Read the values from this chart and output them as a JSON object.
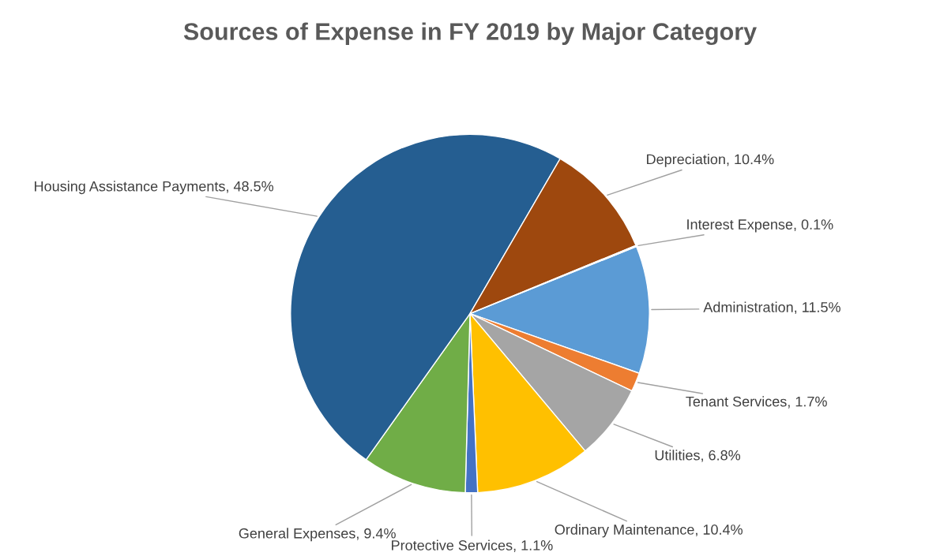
{
  "chart_data": {
    "type": "pie",
    "title": "Sources of Expense in FY 2019 by Major Category",
    "categories": [
      "Administration",
      "Tenant Services",
      "Utilities",
      "Ordinary Maintenance",
      "Protective Services",
      "General Expenses",
      "Housing Assistance Payments",
      "Depreciation",
      "Interest Expense"
    ],
    "values": [
      11.5,
      1.7,
      6.8,
      10.4,
      1.1,
      9.4,
      48.5,
      10.4,
      0.1
    ],
    "value_labels": [
      "11.5%",
      "1.7%",
      "6.8%",
      "10.4%",
      "1.1%",
      "9.4%",
      "48.5%",
      "10.4%",
      "0.1%"
    ],
    "colors": [
      "#5b9bd5",
      "#ed7d31",
      "#a5a5a5",
      "#ffc000",
      "#4472c4",
      "#70ad47",
      "#255e91",
      "#9e480e",
      "#636363"
    ],
    "legend": false
  }
}
